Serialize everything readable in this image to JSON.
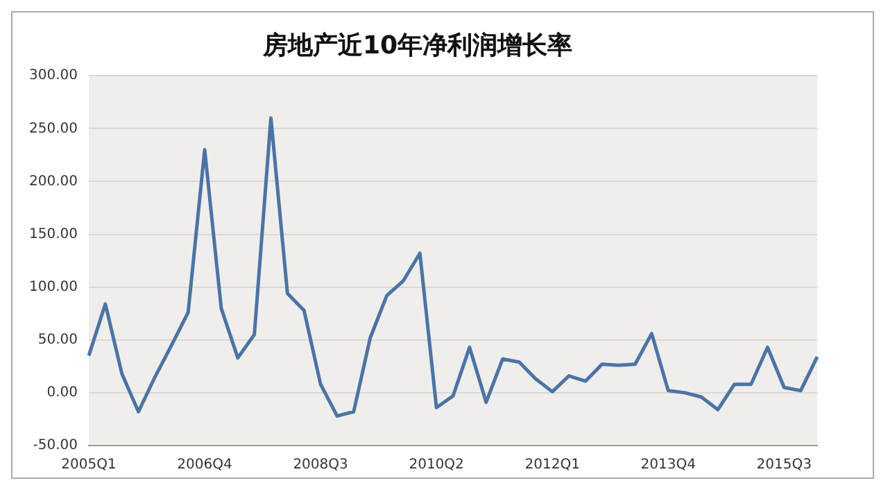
{
  "chart_data": {
    "type": "line",
    "title": "房地产近10年净利润增长率",
    "categories": [
      "2005Q1",
      null,
      null,
      null,
      null,
      null,
      null,
      "2006Q4",
      null,
      null,
      null,
      null,
      null,
      null,
      "2008Q3",
      null,
      null,
      null,
      null,
      null,
      null,
      "2010Q2",
      null,
      null,
      null,
      null,
      null,
      null,
      "2012Q1",
      null,
      null,
      null,
      null,
      null,
      null,
      "2013Q4",
      null,
      null,
      null,
      null,
      null,
      null,
      "2015Q3",
      null,
      null
    ],
    "series": [
      {
        "color": "#4a74a8",
        "values": [
          35,
          84,
          18,
          -18,
          15,
          45,
          76,
          230,
          80,
          33,
          55,
          260,
          94,
          78,
          8,
          -22,
          -18,
          52,
          92,
          106,
          132,
          -14,
          -3,
          43,
          -9,
          32,
          29,
          13,
          1,
          16,
          11,
          27,
          26,
          27,
          56,
          2,
          0,
          -4,
          -16,
          8,
          8,
          43,
          5,
          2,
          34
        ]
      }
    ],
    "ylim": [
      -50,
      300
    ],
    "yticks": [
      {
        "value": -50,
        "label": "-50.00"
      },
      {
        "value": 0,
        "label": "0.00"
      },
      {
        "value": 50,
        "label": "50.00"
      },
      {
        "value": 100,
        "label": "100.00"
      },
      {
        "value": 150,
        "label": "150.00"
      },
      {
        "value": 200,
        "label": "200.00"
      },
      {
        "value": 250,
        "label": "250.00"
      },
      {
        "value": 300,
        "label": "300.00"
      }
    ],
    "grid": "y",
    "legend": false,
    "marker": "none",
    "line_style": "solid"
  }
}
